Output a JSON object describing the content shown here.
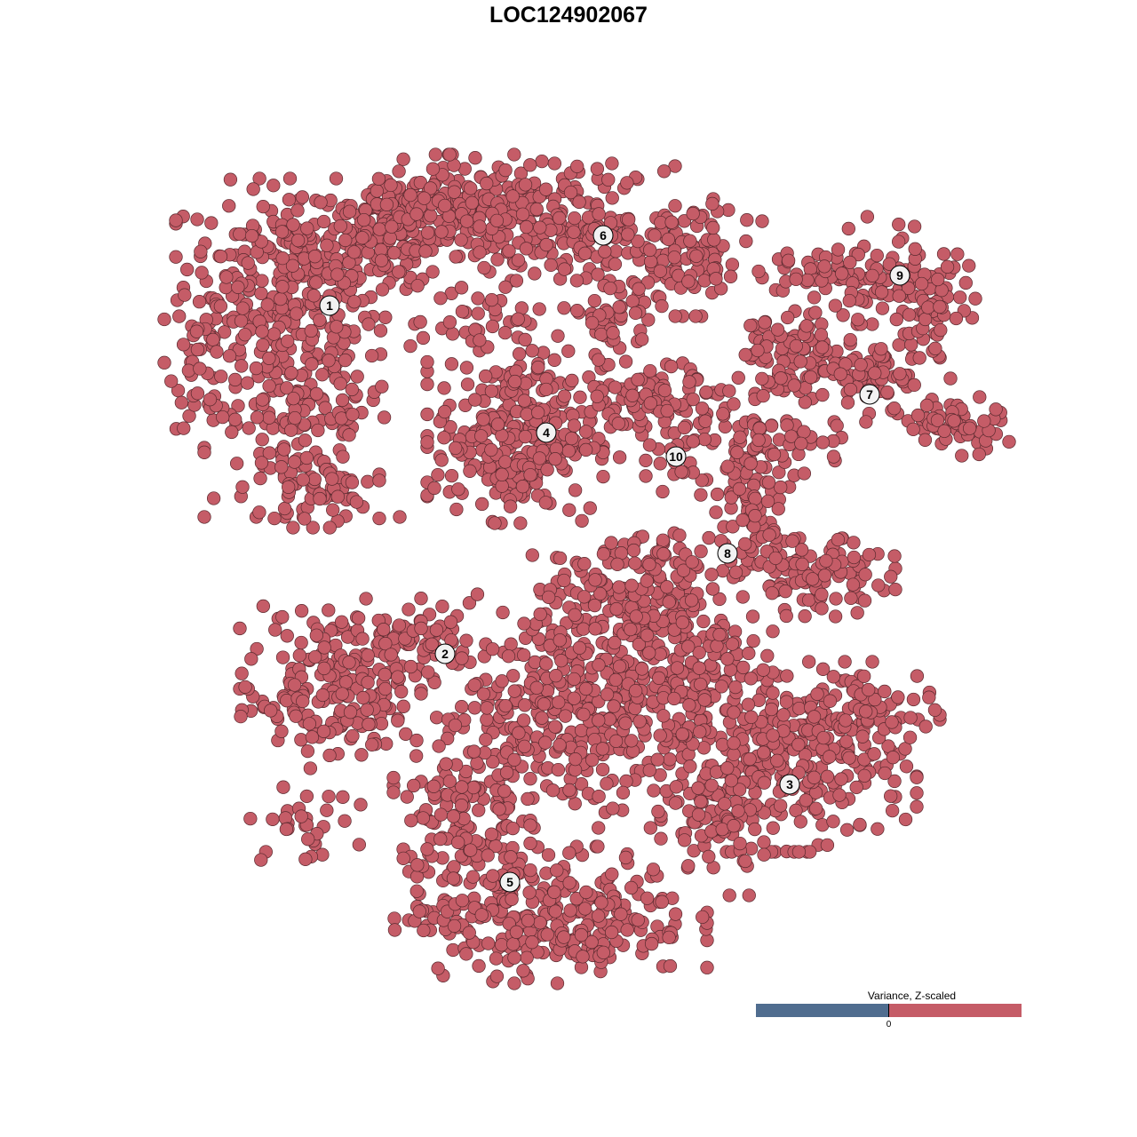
{
  "chart_data": {
    "type": "scatter",
    "title": "LOC124902067",
    "xlabel": "",
    "ylabel": "",
    "xlim": [
      -46.5,
      46.5
    ],
    "ylim": [
      -45,
      45.5
    ],
    "grid": false,
    "point_color": "#c55c67",
    "point_stroke": "#5a2a2f",
    "clusters": [
      {
        "label": "1",
        "center": [
          -29.4,
          29.6
        ],
        "clouds": [
          [
            -33.5,
            34,
            6,
            4.5,
            250
          ],
          [
            -32.5,
            19,
            5,
            6,
            200
          ],
          [
            -42.5,
            24,
            2.5,
            4,
            60
          ],
          [
            -31.5,
            9,
            3.5,
            2,
            60
          ],
          [
            -22.5,
            38,
            5,
            3,
            120
          ]
        ]
      },
      {
        "label": "2",
        "center": [
          -16.4,
          -9.6
        ],
        "clouds": [
          [
            -28.5,
            -10,
            5,
            3,
            120
          ],
          [
            -29.5,
            -17,
            4.5,
            2.5,
            90
          ],
          [
            -19.5,
            -8,
            3.5,
            2,
            50
          ],
          [
            -32.5,
            -29,
            3,
            2,
            30
          ]
        ]
      },
      {
        "label": "3",
        "center": [
          22.4,
          -24.3
        ],
        "clouds": [
          [
            23.5,
            -22,
            6,
            4.5,
            250
          ],
          [
            14.5,
            -28,
            3,
            4,
            80
          ],
          [
            30.5,
            -16,
            4,
            2.5,
            80
          ]
        ]
      },
      {
        "label": "4",
        "center": [
          -5.0,
          15.3
        ],
        "clouds": [
          [
            -8.5,
            15,
            4.5,
            4.5,
            300
          ]
        ]
      },
      {
        "label": "5",
        "center": [
          -9.1,
          -35.3
        ],
        "clouds": [
          [
            -1.5,
            -16,
            8,
            6,
            400
          ],
          [
            9.5,
            -10,
            5,
            4,
            150
          ],
          [
            -4.5,
            -39,
            8,
            3.5,
            300
          ],
          [
            -14.5,
            -28,
            3.5,
            5,
            120
          ],
          [
            3.5,
            -4,
            5,
            2.5,
            100
          ]
        ]
      },
      {
        "label": "6",
        "center": [
          1.4,
          37.5
        ],
        "clouds": [
          [
            -13.5,
            40,
            6,
            3,
            200
          ],
          [
            -1.5,
            39,
            5,
            3,
            150
          ],
          [
            10.5,
            35,
            4,
            3,
            100
          ],
          [
            2.5,
            28,
            2.5,
            3,
            50
          ],
          [
            -12.5,
            28,
            4,
            2,
            40
          ]
        ]
      },
      {
        "label": "7",
        "center": [
          31.4,
          19.6
        ],
        "clouds": [
          [
            29.5,
            22,
            5,
            2.5,
            120
          ],
          [
            40.5,
            16,
            3,
            1.5,
            60
          ],
          [
            21.5,
            25,
            2.5,
            2,
            50
          ]
        ]
      },
      {
        "label": "8",
        "center": [
          15.4,
          1.7
        ],
        "clouds": [
          [
            25.5,
            -1,
            4,
            2,
            100
          ],
          [
            18.5,
            9,
            2,
            4,
            70
          ],
          [
            21.5,
            14,
            4,
            1.5,
            50
          ],
          [
            9.5,
            1,
            6,
            1.5,
            60
          ]
        ]
      },
      {
        "label": "9",
        "center": [
          34.8,
          33.0
        ],
        "clouds": [
          [
            34.5,
            33,
            4,
            3,
            90
          ],
          [
            25.5,
            33,
            3,
            1.5,
            40
          ],
          [
            38.5,
            29,
            1.2,
            3,
            30
          ]
        ]
      },
      {
        "label": "10",
        "center": [
          9.6,
          12.6
        ],
        "clouds": [
          [
            9.5,
            17,
            3,
            4,
            80
          ],
          [
            4.5,
            19,
            3,
            1.5,
            40
          ]
        ]
      }
    ],
    "legend": {
      "title": "Variance, Z-scaled",
      "tick_label": "0",
      "low_color": "#506d8f",
      "high_color": "#c55c67",
      "placement": "bottom-right"
    }
  }
}
